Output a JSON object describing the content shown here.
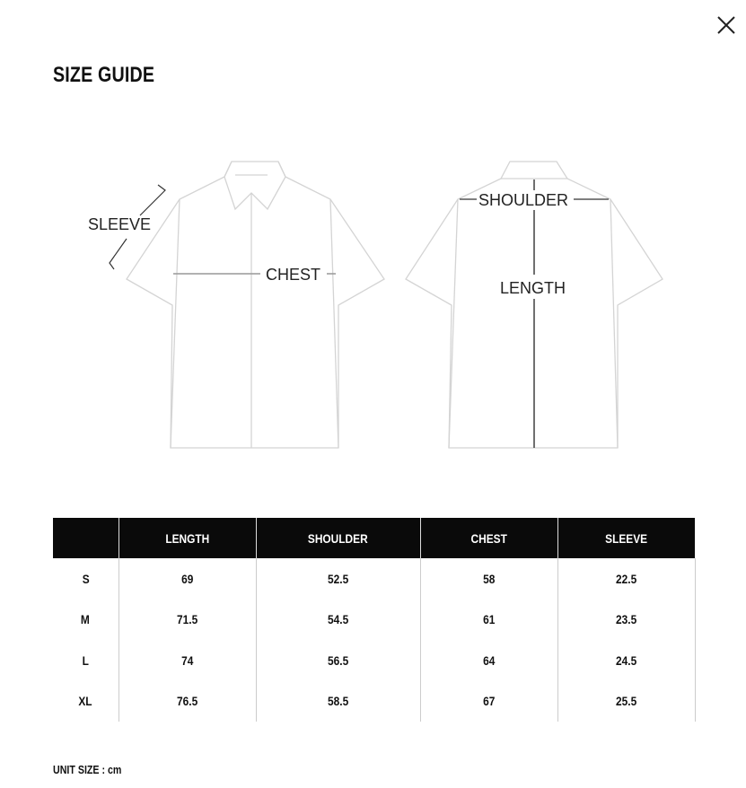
{
  "title": "SIZE GUIDE",
  "close_icon": "close-x-icon",
  "diagram": {
    "front_labels": {
      "sleeve": "SLEEVE",
      "chest": "CHEST"
    },
    "back_labels": {
      "shoulder": "SHOULDER",
      "length": "LENGTH"
    }
  },
  "table": {
    "headers": [
      "",
      "LENGTH",
      "SHOULDER",
      "CHEST",
      "SLEEVE"
    ],
    "rows": [
      [
        "S",
        "69",
        "52.5",
        "58",
        "22.5"
      ],
      [
        "M",
        "71.5",
        "54.5",
        "61",
        "23.5"
      ],
      [
        "L",
        "74",
        "56.5",
        "64",
        "24.5"
      ],
      [
        "XL",
        "76.5",
        "58.5",
        "67",
        "25.5"
      ]
    ]
  },
  "unit": "UNIT SIZE : cm"
}
